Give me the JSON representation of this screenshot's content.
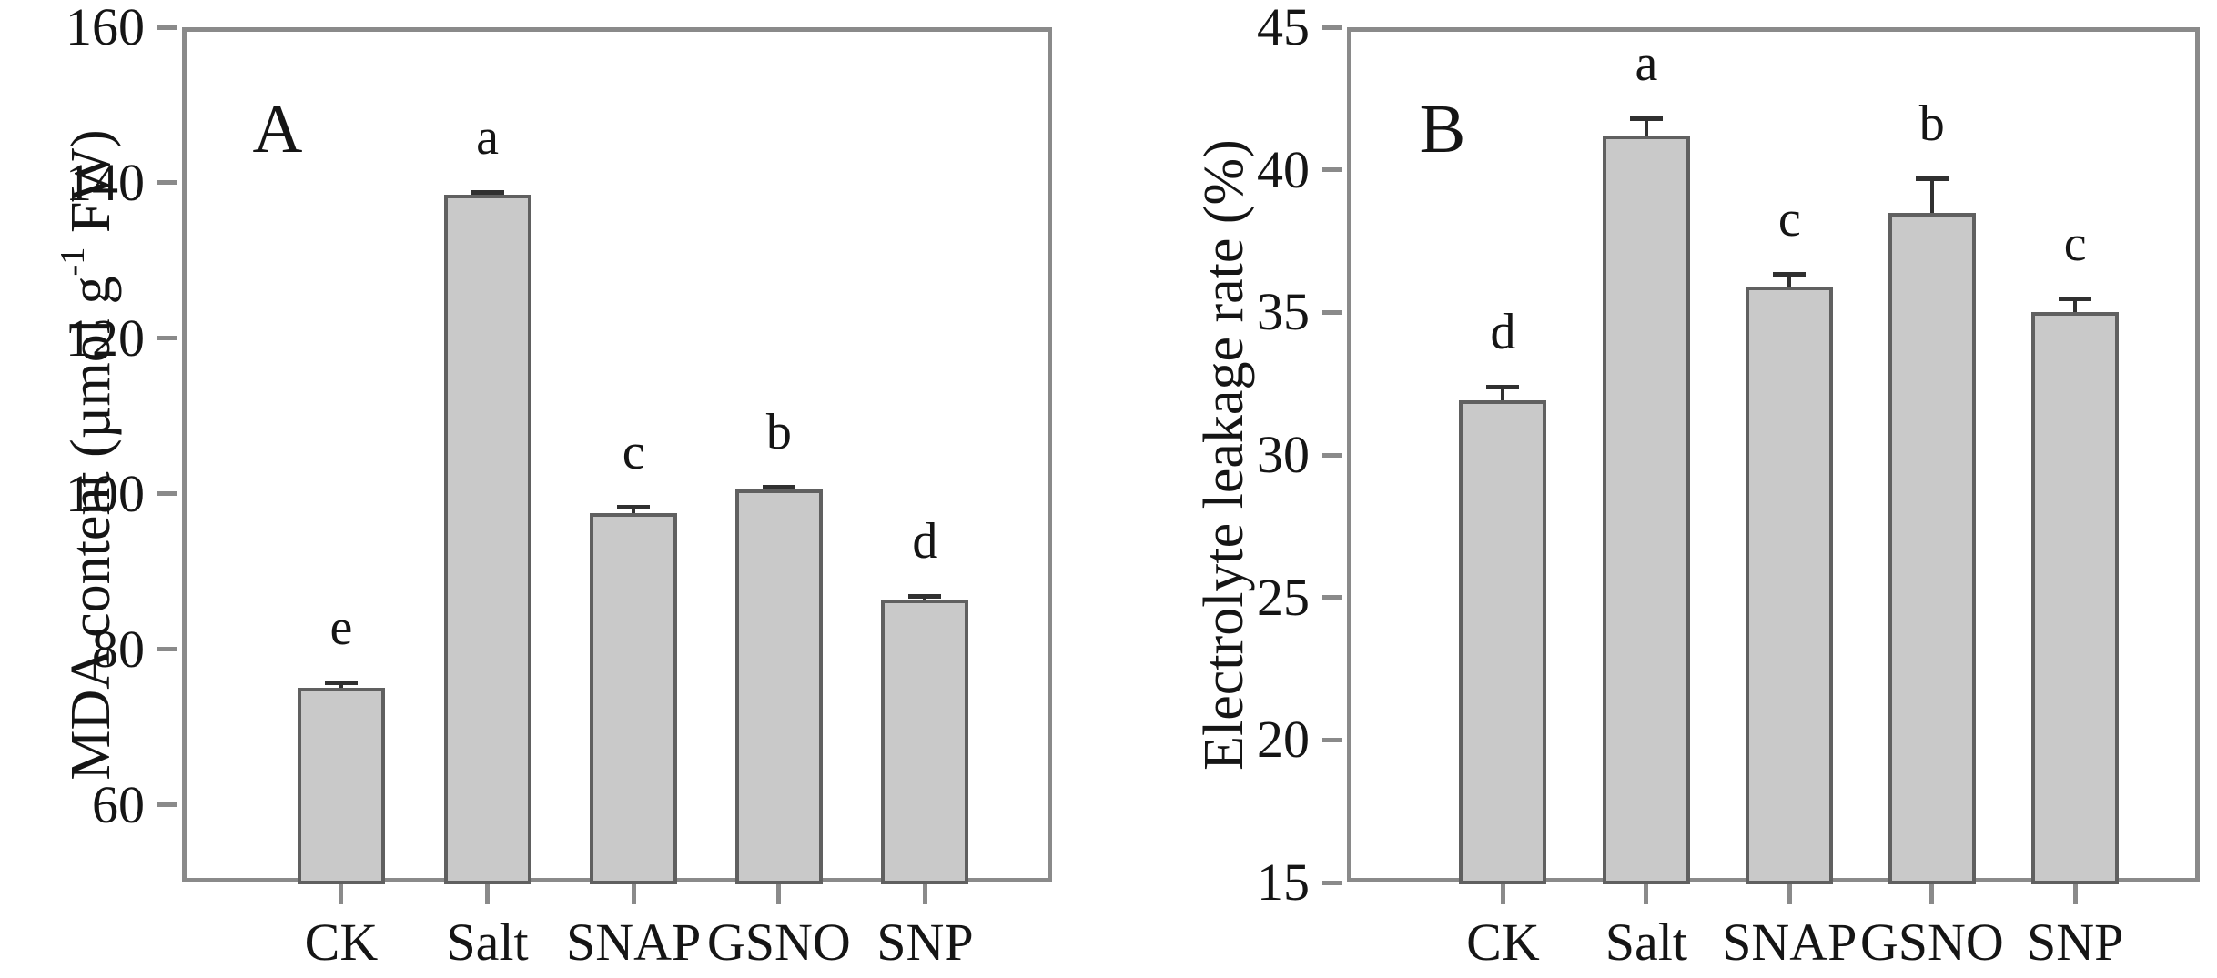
{
  "figure": {
    "description": "Two-panel bar chart figure with significance letters",
    "background": "#ffffff",
    "colors": {
      "axis_frame": "#8a8a8a",
      "bar_fill": "#c9c9c9",
      "bar_border": "#606060",
      "error_bar": "#303030",
      "text": "#151515"
    }
  },
  "chart_data": [
    {
      "type": "bar",
      "panel_label": "A",
      "title": "",
      "xlabel": "",
      "ylabel": "MDA content (µmol g-1 FW)",
      "ylabel_parts": {
        "pre": "MDA content (µmol g",
        "sup": "-1",
        "post": " FW)"
      },
      "categories": [
        "CK",
        "Salt",
        "SNAP",
        "GSNO",
        "SNP"
      ],
      "values": [
        75.0,
        138.5,
        97.5,
        100.5,
        86.4
      ],
      "errors": [
        0.8,
        0.3,
        0.8,
        0.4,
        0.5
      ],
      "sig_letters": [
        "e",
        "a",
        "c",
        "b",
        "d"
      ],
      "ylim": [
        50,
        160
      ],
      "yticks": [
        60,
        80,
        100,
        120,
        140,
        160
      ],
      "grid": false,
      "legend": null,
      "frame": "full box, ticks outside"
    },
    {
      "type": "bar",
      "panel_label": "B",
      "title": "",
      "xlabel": "",
      "ylabel": "Electrolyte leakage rate (%)",
      "ylabel_parts": {
        "pre": "Electrolyte leakage rate (%)",
        "sup": "",
        "post": ""
      },
      "categories": [
        "CK",
        "Salt",
        "SNAP",
        "GSNO",
        "SNP"
      ],
      "values": [
        31.9,
        41.2,
        35.9,
        38.5,
        35.0
      ],
      "errors": [
        0.5,
        0.6,
        0.45,
        1.2,
        0.5
      ],
      "sig_letters": [
        "d",
        "a",
        "c",
        "b",
        "c"
      ],
      "ylim": [
        15,
        45
      ],
      "yticks": [
        15,
        20,
        25,
        30,
        35,
        40,
        45
      ],
      "grid": false,
      "legend": null,
      "frame": "full box, ticks outside"
    }
  ]
}
